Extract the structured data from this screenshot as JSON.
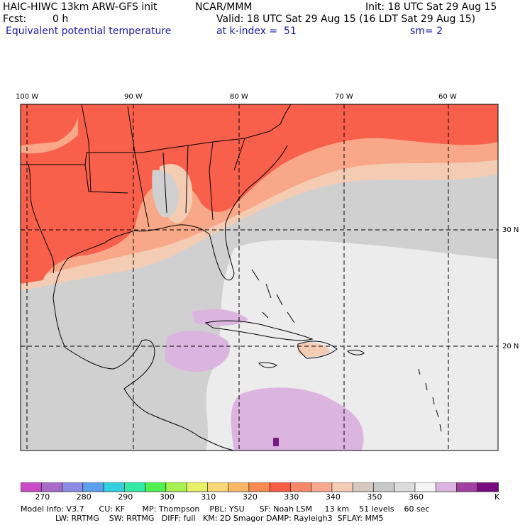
{
  "header": {
    "title": "HAIC-HIWC 13km ARW-GFS init",
    "org": "NCAR/MMM",
    "init": "Init: 18 UTC Sat 29 Aug 15",
    "fcst_label": "Fcst:",
    "fcst_value": "0 h",
    "valid": "Valid: 18 UTC Sat 29 Aug 15 (16 LDT Sat 29 Aug 15)",
    "field": "Equivalent potential temperature",
    "level": "at k-index =  51",
    "smooth": "sm= 2"
  },
  "map": {
    "lon_labels": [
      "100 W",
      "90 W",
      "80 W",
      "70 W",
      "60 W"
    ],
    "lat_labels": [
      "30 N",
      "20 N"
    ],
    "colors": {
      "hot": "#f8604c",
      "warm": "#f8a888",
      "peach": "#f4ccb4",
      "gray": "#d0d0d0",
      "light": "#ececec",
      "lilac": "#dcb4e0",
      "purple": "#7a1a84"
    }
  },
  "colorbar": {
    "colors": [
      "#c84cc8",
      "#a86cc8",
      "#8c8ce4",
      "#5ca0ec",
      "#34d0e0",
      "#34e8a8",
      "#50f050",
      "#a8f050",
      "#e8f068",
      "#f8d878",
      "#f8b868",
      "#f88c50",
      "#f85c44",
      "#f88868",
      "#f8a890",
      "#f4ccb4",
      "#d4c8c0",
      "#c8c8c8",
      "#dcdcdc",
      "#f4f4f4",
      "#dcb4e0",
      "#a040a0",
      "#7a0a80"
    ],
    "labels": [
      "270",
      "280",
      "290",
      "300",
      "310",
      "320",
      "330",
      "340",
      "350",
      "360"
    ],
    "unit": "K"
  },
  "footer": {
    "line1": "Model Info: V3.7      CU: KF       MP: Thompson    PBL: YSU      SF: Noah LSM     13 km    51 levels    60 sec",
    "line2": "              LW: RRTMG    SW: RRTMG   DIFF: full   KM: 2D Smagor DAMP: Rayleigh3  SFLAY: MM5"
  }
}
